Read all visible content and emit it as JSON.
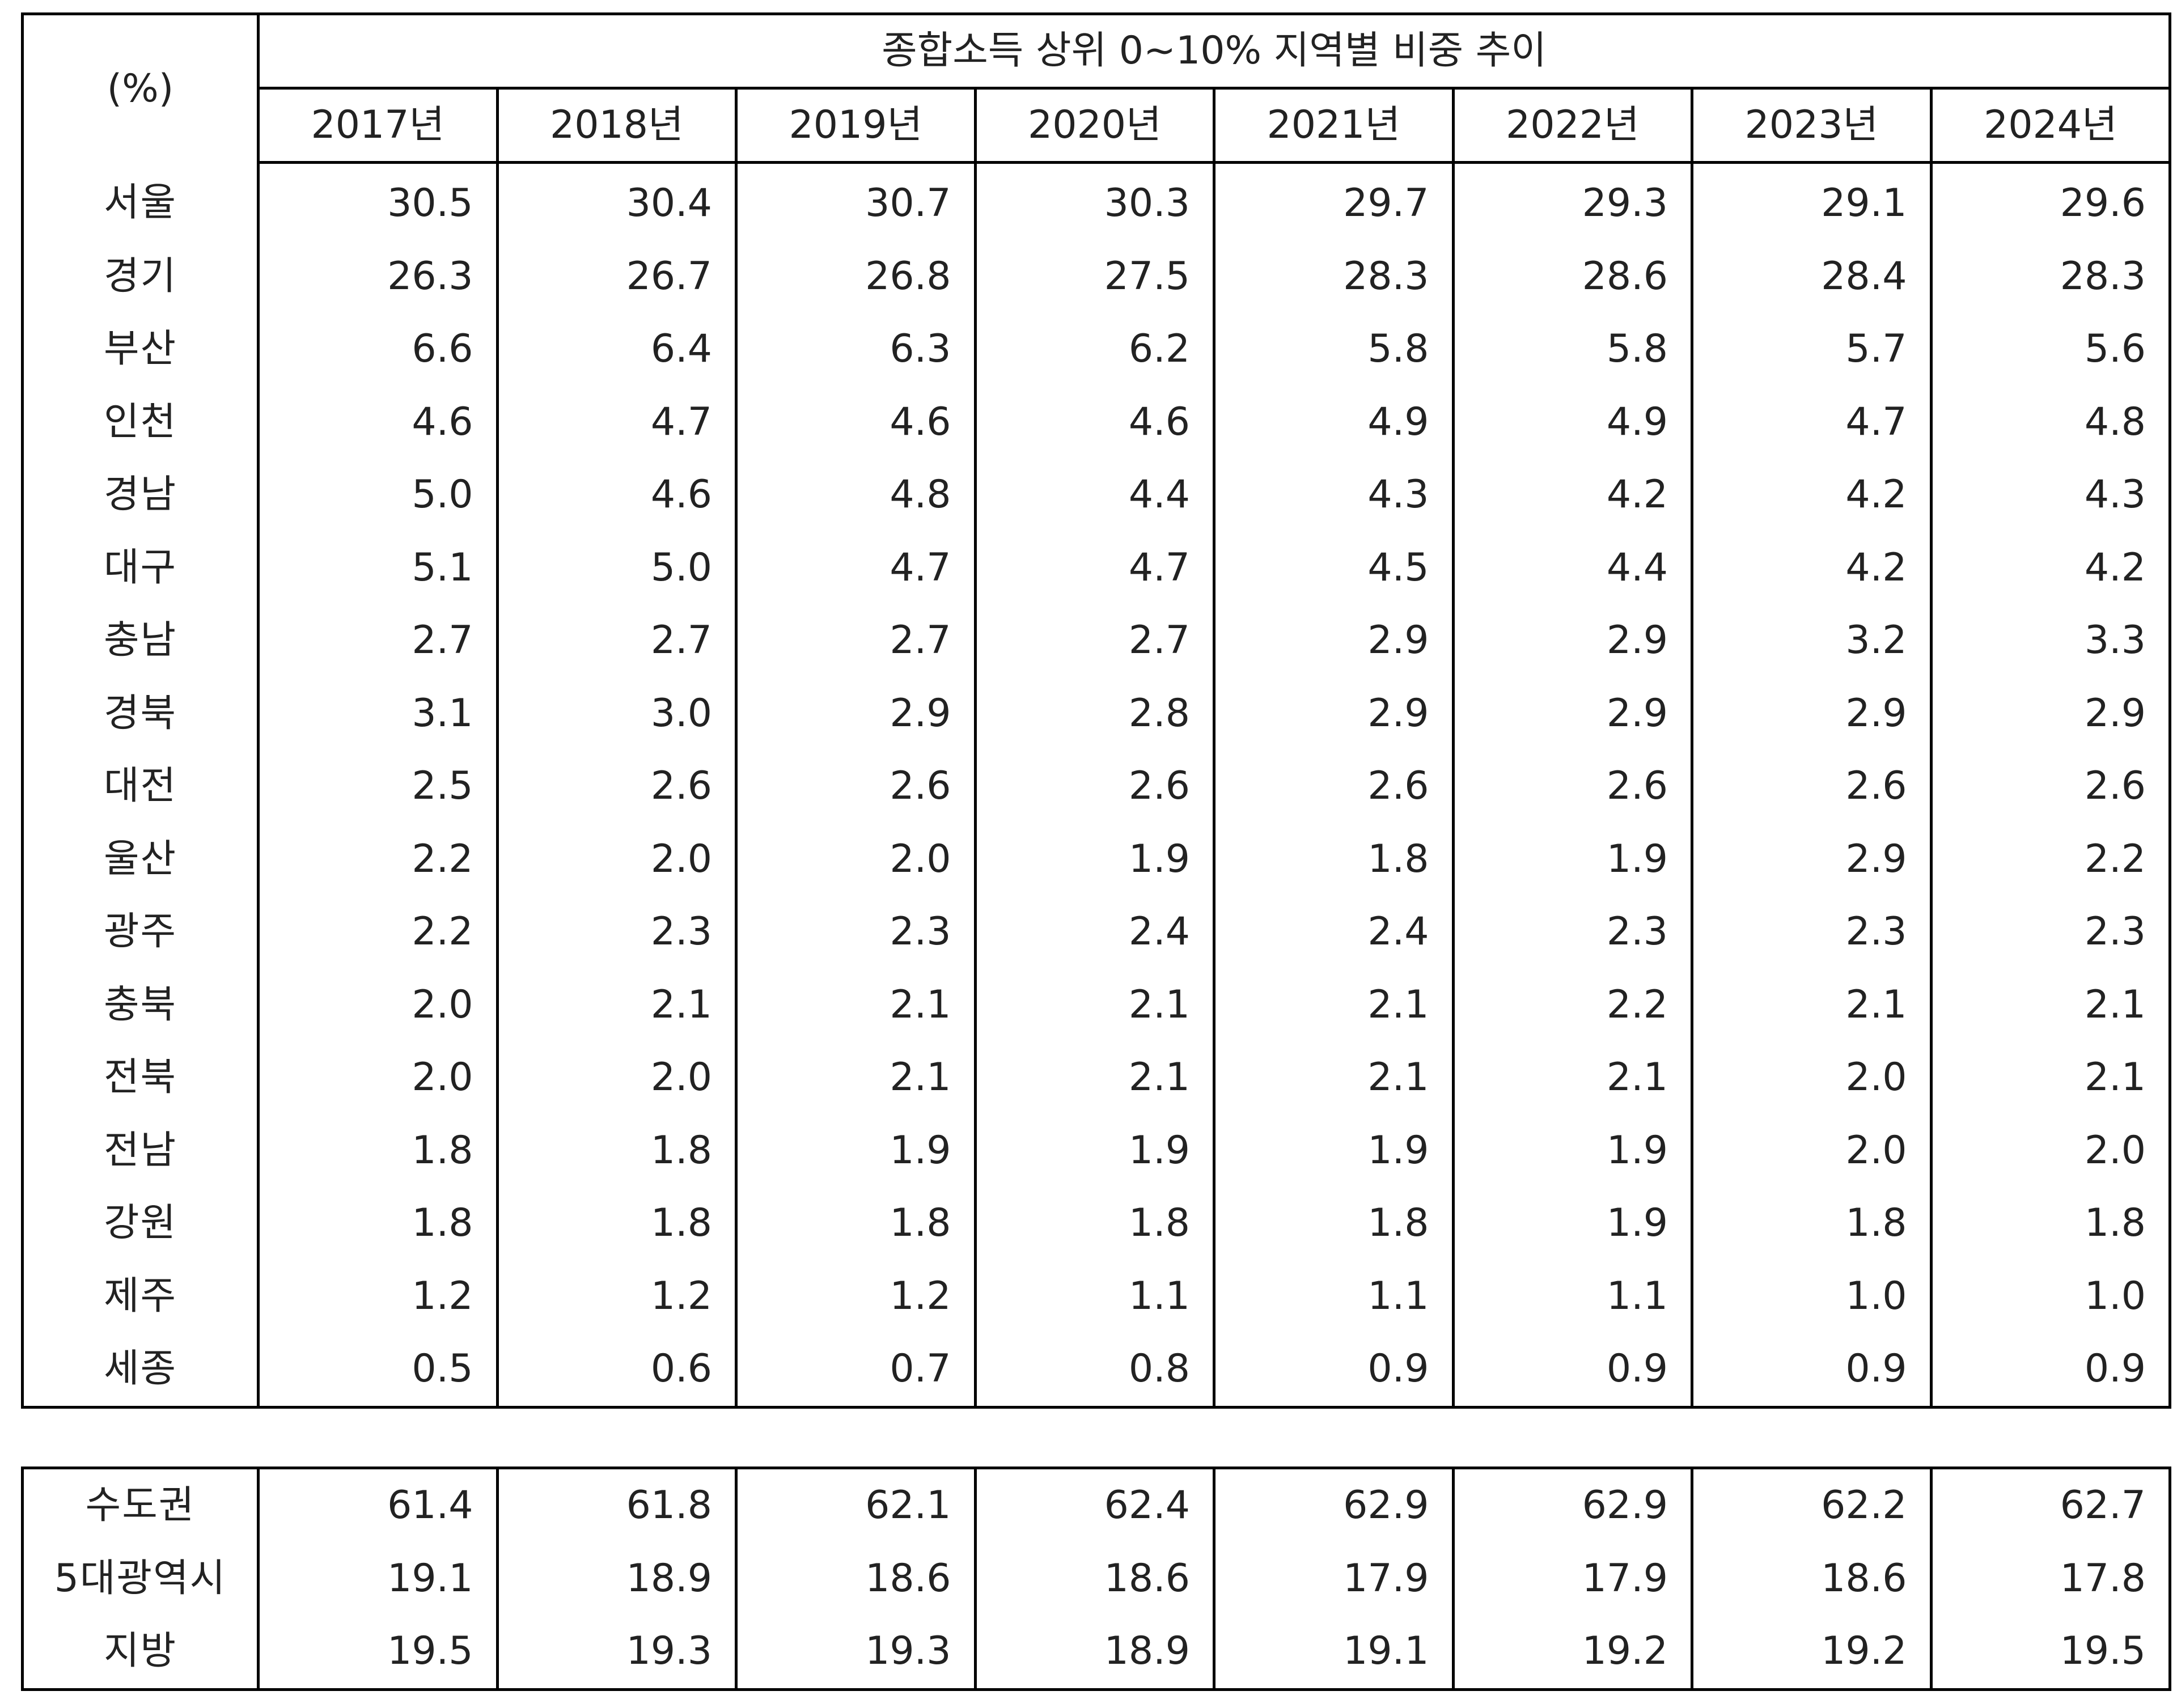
{
  "chart_data": {
    "type": "table",
    "title": "종합소득 상위 0~10% 지역별 비중 추이",
    "unit": "(%)",
    "columns": [
      "2017년",
      "2018년",
      "2019년",
      "2020년",
      "2021년",
      "2022년",
      "2023년",
      "2024년"
    ],
    "rows": [
      {
        "label": "서울",
        "values": [
          "30.5",
          "30.4",
          "30.7",
          "30.3",
          "29.7",
          "29.3",
          "29.1",
          "29.6"
        ]
      },
      {
        "label": "경기",
        "values": [
          "26.3",
          "26.7",
          "26.8",
          "27.5",
          "28.3",
          "28.6",
          "28.4",
          "28.3"
        ]
      },
      {
        "label": "부산",
        "values": [
          "6.6",
          "6.4",
          "6.3",
          "6.2",
          "5.8",
          "5.8",
          "5.7",
          "5.6"
        ]
      },
      {
        "label": "인천",
        "values": [
          "4.6",
          "4.7",
          "4.6",
          "4.6",
          "4.9",
          "4.9",
          "4.7",
          "4.8"
        ]
      },
      {
        "label": "경남",
        "values": [
          "5.0",
          "4.6",
          "4.8",
          "4.4",
          "4.3",
          "4.2",
          "4.2",
          "4.3"
        ]
      },
      {
        "label": "대구",
        "values": [
          "5.1",
          "5.0",
          "4.7",
          "4.7",
          "4.5",
          "4.4",
          "4.2",
          "4.2"
        ]
      },
      {
        "label": "충남",
        "values": [
          "2.7",
          "2.7",
          "2.7",
          "2.7",
          "2.9",
          "2.9",
          "3.2",
          "3.3"
        ]
      },
      {
        "label": "경북",
        "values": [
          "3.1",
          "3.0",
          "2.9",
          "2.8",
          "2.9",
          "2.9",
          "2.9",
          "2.9"
        ]
      },
      {
        "label": "대전",
        "values": [
          "2.5",
          "2.6",
          "2.6",
          "2.6",
          "2.6",
          "2.6",
          "2.6",
          "2.6"
        ]
      },
      {
        "label": "울산",
        "values": [
          "2.2",
          "2.0",
          "2.0",
          "1.9",
          "1.8",
          "1.9",
          "2.9",
          "2.2"
        ]
      },
      {
        "label": "광주",
        "values": [
          "2.2",
          "2.3",
          "2.3",
          "2.4",
          "2.4",
          "2.3",
          "2.3",
          "2.3"
        ]
      },
      {
        "label": "충북",
        "values": [
          "2.0",
          "2.1",
          "2.1",
          "2.1",
          "2.1",
          "2.2",
          "2.1",
          "2.1"
        ]
      },
      {
        "label": "전북",
        "values": [
          "2.0",
          "2.0",
          "2.1",
          "2.1",
          "2.1",
          "2.1",
          "2.0",
          "2.1"
        ]
      },
      {
        "label": "전남",
        "values": [
          "1.8",
          "1.8",
          "1.9",
          "1.9",
          "1.9",
          "1.9",
          "2.0",
          "2.0"
        ]
      },
      {
        "label": "강원",
        "values": [
          "1.8",
          "1.8",
          "1.8",
          "1.8",
          "1.8",
          "1.9",
          "1.8",
          "1.8"
        ]
      },
      {
        "label": "제주",
        "values": [
          "1.2",
          "1.2",
          "1.2",
          "1.1",
          "1.1",
          "1.1",
          "1.0",
          "1.0"
        ]
      },
      {
        "label": "세종",
        "values": [
          "0.5",
          "0.6",
          "0.7",
          "0.8",
          "0.9",
          "0.9",
          "0.9",
          "0.9"
        ]
      }
    ],
    "aggregates": [
      {
        "label": "수도권",
        "values": [
          "61.4",
          "61.8",
          "62.1",
          "62.4",
          "62.9",
          "62.9",
          "62.2",
          "62.7"
        ]
      },
      {
        "label": "5대광역시",
        "values": [
          "19.1",
          "18.9",
          "18.6",
          "18.6",
          "17.9",
          "17.9",
          "18.6",
          "17.8"
        ]
      },
      {
        "label": "지방",
        "values": [
          "19.5",
          "19.3",
          "19.3",
          "18.9",
          "19.1",
          "19.2",
          "19.2",
          "19.5"
        ]
      }
    ]
  }
}
